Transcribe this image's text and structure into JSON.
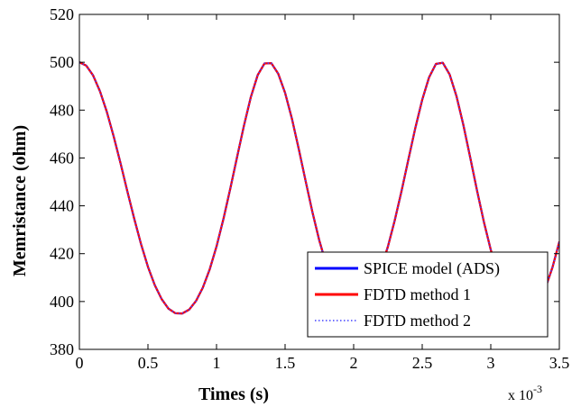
{
  "chart_data": {
    "type": "line",
    "xlabel": "Times (s)",
    "ylabel": "Memristance (ohm)",
    "x_multiplier_label": "x 10",
    "x_multiplier_exponent": "-3",
    "xlim": [
      0,
      3.5
    ],
    "ylim": [
      380,
      520
    ],
    "xticks": [
      0,
      0.5,
      1,
      1.5,
      2,
      2.5,
      3,
      3.5
    ],
    "xtick_labels": [
      "0",
      "0.5",
      "1",
      "1.5",
      "2",
      "2.5",
      "3",
      "3.5"
    ],
    "yticks": [
      380,
      400,
      420,
      440,
      460,
      480,
      500,
      520
    ],
    "ytick_labels": [
      "380",
      "400",
      "420",
      "440",
      "460",
      "480",
      "500",
      "520"
    ],
    "grid": false,
    "legend_position": "bottom-right",
    "x": [
      0,
      0.05,
      0.1,
      0.15,
      0.2,
      0.25,
      0.3,
      0.35,
      0.4,
      0.45,
      0.5,
      0.55,
      0.6,
      0.65,
      0.7,
      0.75,
      0.8,
      0.85,
      0.9,
      0.95,
      1.0,
      1.05,
      1.1,
      1.15,
      1.2,
      1.25,
      1.3,
      1.35,
      1.4,
      1.45,
      1.5,
      1.55,
      1.6,
      1.65,
      1.7,
      1.75,
      1.8,
      1.85,
      1.9,
      1.95,
      2.0,
      2.05,
      2.1,
      2.15,
      2.2,
      2.25,
      2.3,
      2.35,
      2.4,
      2.45,
      2.5,
      2.55,
      2.6,
      2.65,
      2.7,
      2.75,
      2.8,
      2.85,
      2.9,
      2.95,
      3.0,
      3.05,
      3.1,
      3.15,
      3.2,
      3.25,
      3.3,
      3.35,
      3.4,
      3.45,
      3.5
    ],
    "series": [
      {
        "name": "SPICE model (ADS)",
        "color": "#0000ff",
        "style": "solid",
        "values": [
          500.0,
          498.6,
          494.5,
          487.9,
          479.3,
          469.0,
          457.8,
          446.0,
          434.6,
          423.9,
          414.5,
          406.8,
          401.0,
          397.0,
          395.1,
          395.0,
          396.6,
          400.2,
          405.8,
          413.4,
          423.0,
          434.4,
          447.1,
          460.4,
          473.5,
          485.4,
          494.6,
          499.5,
          499.6,
          495.2,
          487.2,
          476.4,
          463.7,
          450.3,
          437.2,
          425.4,
          415.6,
          408.1,
          402.7,
          399.5,
          398.5,
          399.4,
          402.2,
          407.0,
          413.9,
          423.0,
          434.0,
          446.4,
          459.6,
          472.6,
          484.3,
          493.7,
          499.3,
          499.8,
          494.9,
          485.8,
          473.8,
          460.2,
          446.3,
          433.2,
          421.6,
          412.0,
          404.6,
          399.4,
          396.3,
          395.3,
          396.5,
          400.0,
          405.9,
          414.3,
          425.0
        ]
      },
      {
        "name": "FDTD method 1",
        "color": "#ff0000",
        "style": "solid",
        "values": [
          500.0,
          498.6,
          494.5,
          487.9,
          479.3,
          469.0,
          457.8,
          446.0,
          434.6,
          423.9,
          414.5,
          406.8,
          401.0,
          397.0,
          395.1,
          395.0,
          396.6,
          400.2,
          405.8,
          413.4,
          423.0,
          434.4,
          447.1,
          460.4,
          473.5,
          485.4,
          494.6,
          499.5,
          499.6,
          495.2,
          487.2,
          476.4,
          463.7,
          450.3,
          437.2,
          425.4,
          415.6,
          408.1,
          402.7,
          399.5,
          398.5,
          399.4,
          402.2,
          407.0,
          413.9,
          423.0,
          434.0,
          446.4,
          459.6,
          472.6,
          484.3,
          493.7,
          499.3,
          499.8,
          494.9,
          485.8,
          473.8,
          460.2,
          446.3,
          433.2,
          421.6,
          412.0,
          404.6,
          399.4,
          396.3,
          395.3,
          396.5,
          400.0,
          405.9,
          414.3,
          425.0
        ]
      },
      {
        "name": "FDTD method 2",
        "color": "#4040ff",
        "style": "dotted",
        "values": [
          500.0,
          498.6,
          494.5,
          487.9,
          479.3,
          469.0,
          457.8,
          446.0,
          434.6,
          423.9,
          414.5,
          406.8,
          401.0,
          397.0,
          395.1,
          395.0,
          396.6,
          400.2,
          405.8,
          413.4,
          423.0,
          434.4,
          447.1,
          460.4,
          473.5,
          485.4,
          494.6,
          499.5,
          499.6,
          495.2,
          487.2,
          476.4,
          463.7,
          450.3,
          437.2,
          425.4,
          415.6,
          408.1,
          402.7,
          399.5,
          398.5,
          399.4,
          402.2,
          407.0,
          413.9,
          423.0,
          434.0,
          446.4,
          459.6,
          472.6,
          484.3,
          493.7,
          499.3,
          499.8,
          494.9,
          485.8,
          473.8,
          460.2,
          446.3,
          433.2,
          421.6,
          412.0,
          404.6,
          399.4,
          396.3,
          395.3,
          396.5,
          400.0,
          405.9,
          414.3,
          425.0
        ]
      }
    ]
  }
}
